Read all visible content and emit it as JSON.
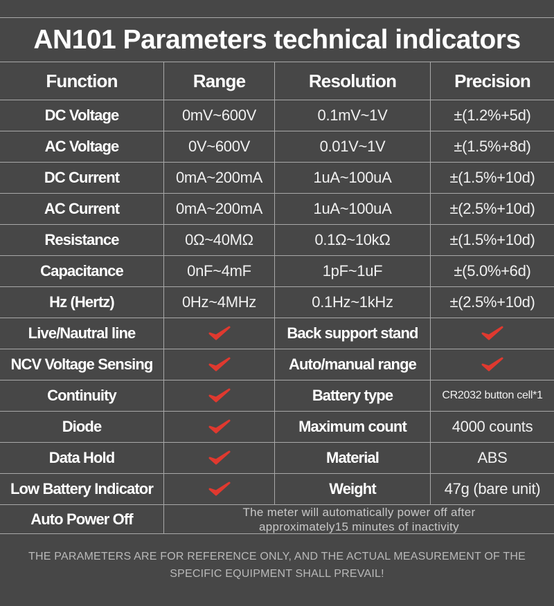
{
  "title": "AN101 Parameters technical indicators",
  "header": [
    "Function",
    "Range",
    "Resolution",
    "Precision"
  ],
  "specs": [
    [
      "DC Voltage",
      "0mV~600V",
      "0.1mV~1V",
      "±(1.2%+5d)"
    ],
    [
      "AC Voltage",
      "0V~600V",
      "0.01V~1V",
      "±(1.5%+8d)"
    ],
    [
      "DC Current",
      "0mA~200mA",
      "1uA~100uA",
      "±(1.5%+10d)"
    ],
    [
      "AC Current",
      "0mA~200mA",
      "1uA~100uA",
      "±(2.5%+10d)"
    ],
    [
      "Resistance",
      "0Ω~40MΩ",
      "0.1Ω~10kΩ",
      "±(1.5%+10d)"
    ],
    [
      "Capacitance",
      "0nF~4mF",
      "1pF~1uF",
      "±(5.0%+6d)"
    ],
    [
      "Hz (Hertz)",
      "0Hz~4MHz",
      "0.1Hz~1kHz",
      "±(2.5%+10d)"
    ]
  ],
  "features": [
    {
      "label": "Live/Nautral line",
      "item": "Back support stand"
    },
    {
      "label": "NCV Voltage Sensing",
      "item": "Auto/manual range"
    },
    {
      "label": "Continuity",
      "item": "Battery type",
      "value": "CR2032 button cell*1"
    },
    {
      "label": "Diode",
      "item": "Maximum count",
      "value": "4000 counts"
    },
    {
      "label": "Data Hold",
      "item": "Material",
      "value": "ABS"
    },
    {
      "label": "Low Battery Indicator",
      "item": "Weight",
      "value": "47g (bare unit)"
    }
  ],
  "auto_power_off": {
    "label": "Auto Power Off",
    "note": "The meter will automatically power off after approximately15 minutes of inactivity"
  },
  "footer": "THE PARAMETERS ARE FOR REFERENCE ONLY, AND THE ACTUAL MEASUREMENT OF THE SPECIFIC EQUIPMENT SHALL PREVAIL!"
}
